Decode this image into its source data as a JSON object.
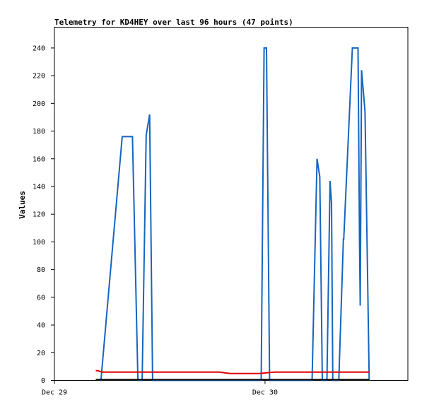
{
  "chart_data": {
    "type": "line",
    "title": "Telemetry for KD4HEY over last 96 hours (47 points)",
    "xlabel": "",
    "ylabel": "Values",
    "xlim": [
      0,
      1.93
    ],
    "ylim": [
      0,
      255
    ],
    "x_ticks": [
      {
        "x": 0,
        "label": "Dec 29"
      },
      {
        "x": 1.15,
        "label": "Dec 30"
      }
    ],
    "y_ticks": [
      0,
      20,
      40,
      60,
      80,
      100,
      120,
      140,
      160,
      180,
      200,
      220,
      240
    ],
    "grid": false,
    "legend": "none",
    "series": [
      {
        "color": "#1565c0",
        "x": [
          0.246,
          0.254,
          0.37,
          0.376,
          0.42,
          0.426,
          0.456,
          0.479,
          0.501,
          0.52,
          0.536,
          1.129,
          1.145,
          1.158,
          1.175,
          1.407,
          1.434,
          1.449,
          1.463,
          1.488,
          1.505,
          1.513,
          1.52,
          1.532,
          1.553,
          1.578,
          1.58,
          1.627,
          1.641,
          1.658,
          1.666,
          1.67,
          1.677,
          1.696,
          1.719
        ],
        "y": [
          0,
          0,
          176,
          176,
          176,
          176,
          0,
          0,
          177,
          192,
          0,
          0,
          240,
          240,
          0,
          0,
          160,
          147,
          0,
          0,
          144,
          128,
          0,
          0,
          0,
          102,
          102,
          240,
          240,
          240,
          100,
          54,
          224,
          194,
          0
        ]
      },
      {
        "color": "#e00000",
        "x": [
          0.226,
          0.237,
          0.26,
          0.48,
          0.72,
          0.9,
          0.96,
          1.1,
          1.12,
          1.2,
          1.719
        ],
        "y": [
          7,
          7,
          6,
          6,
          6,
          6,
          5,
          5,
          5,
          6,
          6
        ]
      },
      {
        "color": "#000000",
        "x": [
          0.226,
          1.719
        ],
        "y": [
          0.5,
          0.5
        ]
      }
    ]
  }
}
